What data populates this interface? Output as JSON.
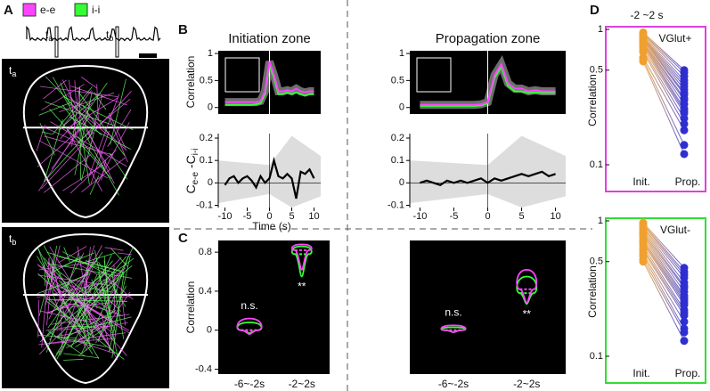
{
  "panel_a": {
    "label": "A",
    "legend": [
      {
        "name": "e-e",
        "color": "#ff44ff"
      },
      {
        "name": "i-i",
        "color": "#33ff33"
      }
    ],
    "markers": [
      {
        "main": "t",
        "sub": "a"
      },
      {
        "main": "t",
        "sub": "b"
      }
    ]
  },
  "panel_b": {
    "label": "B",
    "x": [
      -10,
      -9,
      -8,
      -7,
      -6,
      -5,
      -4,
      -3,
      -2,
      -1,
      0,
      1,
      2,
      3,
      4,
      5,
      6,
      7,
      8,
      9,
      10
    ],
    "xlim": [
      -11.5,
      11.5
    ],
    "xticks": [
      -10,
      -5,
      0,
      5,
      10
    ],
    "xlabel": "Time (s)",
    "top_ylabel": "Correlation",
    "top_ylim": [
      -0.12,
      1.05
    ],
    "top_yticks": [
      0,
      0.5,
      1
    ],
    "bottom_ylabel": {
      "c1": "C",
      "s1": "e-e",
      "c2": " -C",
      "s2": "i-i"
    },
    "bottom_ylim": [
      -0.11,
      0.22
    ],
    "bottom_yticks": [
      -0.1,
      0,
      0.1,
      0.2
    ],
    "zones": [
      {
        "title": "Initiation zone",
        "color": "#f0a030",
        "ee_values": [
          0.1,
          0.1,
          0.1,
          0.1,
          0.1,
          0.1,
          0.1,
          0.1,
          0.12,
          0.3,
          0.85,
          0.6,
          0.3,
          0.3,
          0.32,
          0.3,
          0.35,
          0.3,
          0.28,
          0.3,
          0.3
        ],
        "ii_values": [
          0.05,
          0.05,
          0.05,
          0.05,
          0.05,
          0.05,
          0.05,
          0.06,
          0.08,
          0.25,
          0.78,
          0.55,
          0.25,
          0.25,
          0.28,
          0.25,
          0.28,
          0.25,
          0.22,
          0.25,
          0.25
        ],
        "diff_values": [
          -0.01,
          0.02,
          0.03,
          0.0,
          0.02,
          0.03,
          0.01,
          -0.02,
          0.03,
          0.0,
          0.02,
          0.1,
          0.03,
          0.02,
          0.04,
          0.02,
          -0.07,
          0.05,
          0.04,
          0.06,
          0.02
        ]
      },
      {
        "title": "Propagation zone",
        "color": "#2f2fd0",
        "ee_values": [
          0.05,
          0.05,
          0.05,
          0.05,
          0.05,
          0.05,
          0.05,
          0.05,
          0.05,
          0.06,
          0.1,
          0.6,
          0.8,
          0.45,
          0.35,
          0.35,
          0.3,
          0.32,
          0.3,
          0.3,
          0.3
        ],
        "ii_values": [
          0.03,
          0.03,
          0.03,
          0.03,
          0.03,
          0.03,
          0.03,
          0.03,
          0.03,
          0.04,
          0.08,
          0.55,
          0.75,
          0.4,
          0.3,
          0.3,
          0.27,
          0.28,
          0.27,
          0.27,
          0.27
        ],
        "diff_values": [
          0.0,
          0.01,
          0.0,
          -0.01,
          0.01,
          0.0,
          0.01,
          0.0,
          0.01,
          0.02,
          0.0,
          0.02,
          0.01,
          0.02,
          0.03,
          0.04,
          0.03,
          0.04,
          0.05,
          0.03,
          0.04
        ]
      }
    ]
  },
  "panel_c": {
    "label": "C",
    "ylabel": "Correlation",
    "ylim": [
      -0.45,
      0.92
    ],
    "yticks": [
      -0.4,
      0,
      0.4,
      0.8
    ],
    "categories": [
      "-6~-2s",
      "-2~2s"
    ],
    "zones": [
      {
        "annotations": [
          "n.s.",
          "**"
        ],
        "violins": [
          {
            "ee": [
              -0.04,
              0.0,
              0.12
            ],
            "ii": [
              -0.03,
              0.0,
              0.08
            ]
          },
          {
            "ee": [
              0.62,
              0.82,
              0.88
            ],
            "ii": [
              0.55,
              0.78,
              0.86
            ]
          }
        ]
      },
      {
        "annotations": [
          "n.s.",
          "**"
        ],
        "violins": [
          {
            "ee": [
              -0.02,
              0.0,
              0.05
            ],
            "ii": [
              -0.02,
              0.0,
              0.03
            ]
          },
          {
            "ee": [
              0.28,
              0.42,
              0.62
            ],
            "ii": [
              0.27,
              0.38,
              0.55
            ]
          }
        ]
      }
    ]
  },
  "panel_d": {
    "label": "D",
    "title": "-2 ~2 s",
    "ylabel": "Correlation",
    "ylim": [
      0.1,
      1
    ],
    "yticks": [
      0.1,
      0.5,
      1
    ],
    "log_scale": true,
    "categories": [
      "Init.",
      "Prop."
    ],
    "init_color": "#f0a030",
    "prop_color": "#2f2fd0",
    "groups": [
      {
        "name": "VGlut+",
        "frame_color": "#e040e0",
        "init": [
          0.95,
          0.93,
          0.92,
          0.9,
          0.88,
          0.87,
          0.86,
          0.85,
          0.84,
          0.82,
          0.8,
          0.79,
          0.78,
          0.76,
          0.73,
          0.7,
          0.68,
          0.62,
          0.6,
          0.58
        ],
        "prop": [
          0.5,
          0.48,
          0.45,
          0.42,
          0.4,
          0.38,
          0.36,
          0.34,
          0.33,
          0.31,
          0.3,
          0.28,
          0.26,
          0.25,
          0.24,
          0.22,
          0.2,
          0.18,
          0.14,
          0.12
        ]
      },
      {
        "name": "VGlut-",
        "frame_color": "#33dd33",
        "init": [
          0.97,
          0.95,
          0.93,
          0.9,
          0.88,
          0.85,
          0.82,
          0.8,
          0.78,
          0.75,
          0.72,
          0.7,
          0.68,
          0.65,
          0.62,
          0.6,
          0.57,
          0.55,
          0.52,
          0.5
        ],
        "prop": [
          0.45,
          0.42,
          0.4,
          0.38,
          0.35,
          0.33,
          0.32,
          0.3,
          0.28,
          0.27,
          0.26,
          0.25,
          0.24,
          0.22,
          0.21,
          0.2,
          0.18,
          0.16,
          0.15,
          0.13
        ]
      }
    ]
  }
}
